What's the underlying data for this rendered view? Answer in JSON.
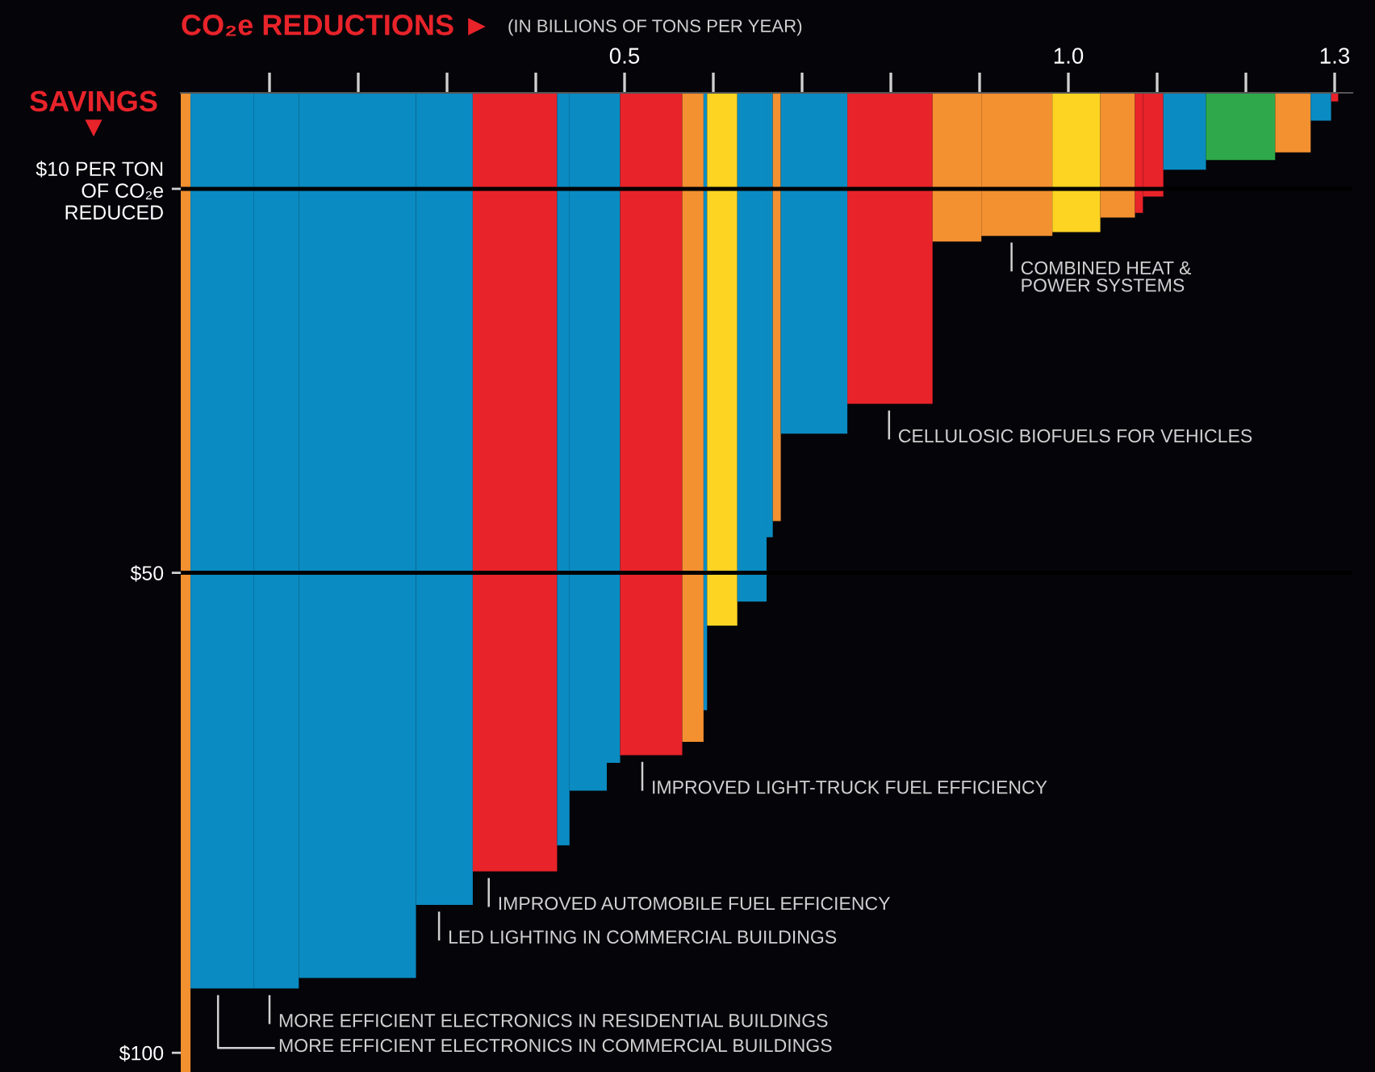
{
  "chart_data": {
    "type": "histogram",
    "xlabel": "CO₂e REDUCTIONS ►",
    "subtitle": "(IN BILLIONS OF TONS PER YEAR)",
    "ylabel": "SAVINGS\n▼",
    "bins": [
      0,
      0.011,
      0.082,
      0.133,
      0.265,
      0.329,
      0.424,
      0.438,
      0.48,
      0.495,
      0.565,
      0.589,
      0.593,
      0.627,
      0.66,
      0.667,
      0.676,
      0.751,
      0.847,
      0.902,
      0.982,
      1.036,
      1.075,
      1.084,
      1.107,
      1.155,
      1.233,
      1.273,
      1.296,
      1.304
    ],
    "values": [
      102,
      93.3,
      93.3,
      92.2,
      84.6,
      81.1,
      78.4,
      72.7,
      69.8,
      69.0,
      67.6,
      64.3,
      55.5,
      53.0,
      46.3,
      44.6,
      35.5,
      32.4,
      15.5,
      14.9,
      14.5,
      13.0,
      12.5,
      10.8,
      8.0,
      7.0,
      6.2,
      2.9,
      0.9
    ],
    "colors": [
      "#f39030",
      "#0a8bc2",
      "#0a8bc2",
      "#0a8bc2",
      "#0a8bc2",
      "#e8232a",
      "#0a8bc2",
      "#0a8bc2",
      "#0a8bc2",
      "#e8232a",
      "#f39030",
      "#0a8bc2",
      "#fdd422",
      "#0a8bc2",
      "#0a8bc2",
      "#f39030",
      "#0a8bc2",
      "#e8232a",
      "#f39030",
      "#f39030",
      "#fdd422",
      "#f39030",
      "#e8232a",
      "#e8232a",
      "#0a8bc2",
      "#2ea84a",
      "#f39030",
      "#0a8bc2",
      "#e8232a"
    ],
    "xlim": [
      0,
      1.32
    ],
    "xticks": [
      {
        "value": 0.1,
        "label": null
      },
      {
        "value": 0.2,
        "label": null
      },
      {
        "value": 0.3,
        "label": null
      },
      {
        "value": 0.4,
        "label": null
      },
      {
        "value": 0.5,
        "label": "0.5"
      },
      {
        "value": 0.6,
        "label": null
      },
      {
        "value": 0.7,
        "label": null
      },
      {
        "value": 0.8,
        "label": null
      },
      {
        "value": 0.9,
        "label": null
      },
      {
        "value": 1.0,
        "label": "1.0"
      },
      {
        "value": 1.1,
        "label": null
      },
      {
        "value": 1.2,
        "label": null
      },
      {
        "value": 1.3,
        "label": "1.3"
      }
    ],
    "ylim": [
      102,
      0
    ],
    "yticks": [
      {
        "value": 10,
        "label": "$10 PER TON\nOF CO₂e\nREDUCED"
      },
      {
        "value": 50,
        "label": "$50"
      },
      {
        "value": 100,
        "label": "$100"
      }
    ],
    "ref_lines": [
      {
        "axis": "y",
        "value": 10,
        "label": null,
        "color": "#000000"
      },
      {
        "axis": "y",
        "value": 50,
        "label": null,
        "color": "#000000"
      }
    ],
    "annotations": [
      {
        "text": "MORE EFFICIENT ELECTRONICS IN RESIDENTIAL BUILDINGS",
        "x": 0.1,
        "y": 93.3
      },
      {
        "text": "MORE EFFICIENT ELECTRONICS IN COMMERCIAL BUILDINGS",
        "x": 0.042,
        "y": 93.3
      },
      {
        "text": "LED LIGHTING IN COMMERCIAL BUILDINGS",
        "x": 0.291,
        "y": 84.6
      },
      {
        "text": "IMPROVED AUTOMOBILE FUEL EFFICIENCY",
        "x": 0.347,
        "y": 81.1
      },
      {
        "text": "IMPROVED LIGHT-TRUCK FUEL EFFICIENCY",
        "x": 0.52,
        "y": 69.0
      },
      {
        "text": "CELLULOSIC BIOFUELS FOR VEHICLES",
        "x": 0.798,
        "y": 32.4
      },
      {
        "text": "COMBINED HEAT &\nPOWER SYSTEMS",
        "x": 0.936,
        "y": 14.9
      }
    ],
    "grid": false,
    "legend": false
  }
}
